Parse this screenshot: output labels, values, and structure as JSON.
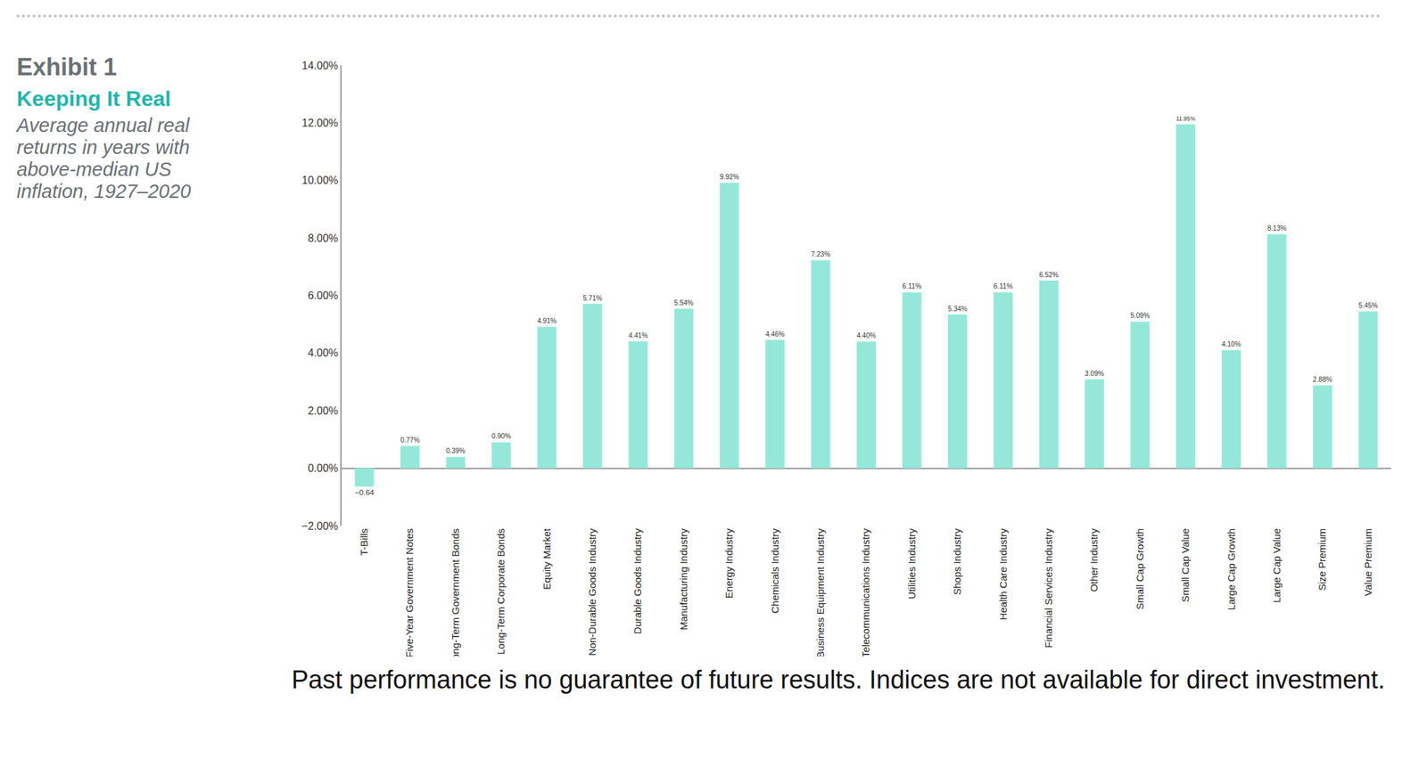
{
  "chart_data": {
    "type": "bar",
    "title": "Exhibit 1",
    "subtitle": "Keeping It Real",
    "annotations": [
      "Average annual real returns in years with above-median US inflation, 1927–2020",
      "Past performance is no guarantee of future results. Indices are not available for direct investment."
    ],
    "categories": [
      "T-Bills",
      "Five-Year Government Notes",
      "Long-Term Government Bonds",
      "Long-Term Corporate Bonds",
      "Equity Market",
      "Non-Durable Goods Industry",
      "Durable Goods Industry",
      "Manufacturing Industry",
      "Energy Industry",
      "Chemicals Industry",
      "Business Equipment Industry",
      "Telecommunications Industry",
      "Utilities Industry",
      "Shops Industry",
      "Health Care Industry",
      "Financial Services Industry",
      "Other Industry",
      "Small Cap Growth",
      "Small Cap Value",
      "Large Cap Growth",
      "Large Cap Value",
      "Size Premium",
      "Value Premium"
    ],
    "values": [
      -0.64,
      0.77,
      0.39,
      0.9,
      4.91,
      5.71,
      4.41,
      5.54,
      9.92,
      4.46,
      7.23,
      4.4,
      6.11,
      5.34,
      6.11,
      6.52,
      3.09,
      5.09,
      11.95,
      4.1,
      8.13,
      2.88,
      5.45
    ],
    "value_labels": [
      "−0.64",
      "0.77%",
      "0.39%",
      "0.90%",
      "4.91%",
      "5.71%",
      "4.41%",
      "5.54%",
      "9.92%",
      "4.46%",
      "7.23%",
      "4.40%",
      "6.11%",
      "5.34%",
      "6.11%",
      "6.52%",
      "3.09%",
      "5.09%",
      "11.95%",
      "4.10%",
      "8.13%",
      "2.88%",
      "5.45%"
    ],
    "color": "#95e8d9",
    "ylim": [
      -2,
      14
    ],
    "yticks": [
      {
        "value": -2,
        "label": "−2.00%"
      },
      {
        "value": 0,
        "label": "0.00%"
      },
      {
        "value": 2,
        "label": "2.00%"
      },
      {
        "value": 4,
        "label": "4.00%"
      },
      {
        "value": 6,
        "label": "6.00%"
      },
      {
        "value": 8,
        "label": "8.00%"
      },
      {
        "value": 10,
        "label": "10.00%"
      },
      {
        "value": 12,
        "label": "12.00%"
      },
      {
        "value": 14,
        "label": "14.00%"
      }
    ],
    "grid": false,
    "data_labels": true
  }
}
